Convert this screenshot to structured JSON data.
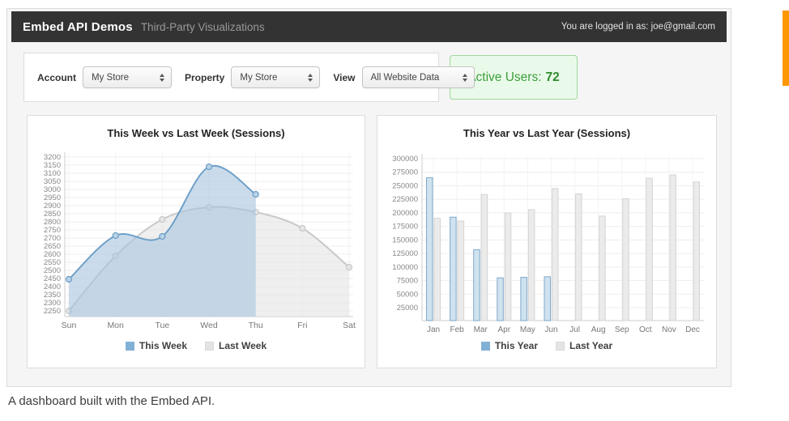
{
  "header": {
    "title": "Embed API Demos",
    "subtitle": "Third-Party Visualizations",
    "login_status": "You are logged in as: joe@gmail.com"
  },
  "toolbar": {
    "selectors": [
      {
        "label": "Account",
        "value": "My Store"
      },
      {
        "label": "Property",
        "value": "My Store"
      },
      {
        "label": "View",
        "value": "All Website Data"
      }
    ],
    "active_users": {
      "label": "Active Users:",
      "count": "72"
    }
  },
  "chart_data": [
    {
      "type": "area",
      "title": "This Week vs Last Week (Sessions)",
      "categories": [
        "Sun",
        "Mon",
        "Tue",
        "Wed",
        "Thu",
        "Fri",
        "Sat"
      ],
      "series": [
        {
          "name": "This Week",
          "color": "blue",
          "values": [
            2445,
            2715,
            2710,
            3140,
            2970,
            null,
            null
          ]
        },
        {
          "name": "Last Week",
          "color": "gray",
          "values": [
            2250,
            2590,
            2815,
            2890,
            2860,
            2760,
            2520
          ]
        }
      ],
      "y_axis": {
        "min": 2250,
        "max": 3200,
        "step": 50
      },
      "legend_position": "bottom",
      "grid": true
    },
    {
      "type": "bar",
      "title": "This Year vs Last Year (Sessions)",
      "categories": [
        "Jan",
        "Feb",
        "Mar",
        "Apr",
        "May",
        "Jun",
        "Jul",
        "Aug",
        "Sep",
        "Oct",
        "Nov",
        "Dec"
      ],
      "series": [
        {
          "name": "This Year",
          "color": "blue",
          "values": [
            265000,
            192000,
            132000,
            80000,
            81000,
            82000,
            null,
            null,
            null,
            null,
            null,
            null
          ]
        },
        {
          "name": "Last Year",
          "color": "gray",
          "values": [
            190000,
            185000,
            234000,
            200000,
            206000,
            245000,
            235000,
            194000,
            226000,
            264000,
            270000,
            257000
          ]
        }
      ],
      "y_axis": {
        "min": 25000,
        "max": 300000,
        "step": 25000
      },
      "legend_position": "bottom",
      "grid": true
    }
  ],
  "caption": "A dashboard built with the Embed API.",
  "colors": {
    "header_bg": "#333333",
    "accent_orange": "#ff9800",
    "active_green_text": "#3c9e3c",
    "active_green_bg": "#eafaea",
    "active_green_border": "#9fd89f",
    "series_blue": "#6e9fc7",
    "series_blue_fill": "#a9c7e0",
    "series_gray": "#c9c9c9",
    "series_gray_fill": "#e2e2e2"
  }
}
